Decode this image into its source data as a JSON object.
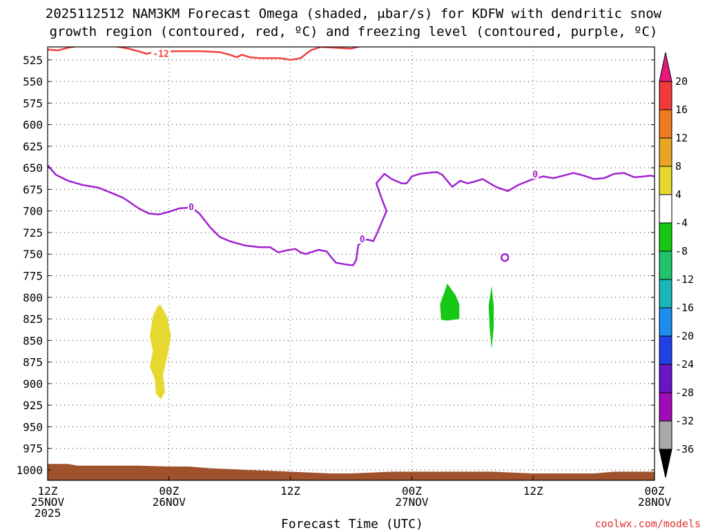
{
  "chart_data": {
    "type": "time-height cross section",
    "title_line1": "2025112512 NAM3KM Forecast Omega (shaded, μbar/s) for KDFW with dendritic snow",
    "title_line2": "growth region (contoured, red, ºC) and freezing level (contoured, purple, ºC)",
    "xlabel": "Forecast Time (UTC)",
    "credit": "coolwx.com/models",
    "xlim_hours": [
      0,
      60
    ],
    "ylim_hPa": [
      510,
      1012
    ],
    "y_ticks": [
      525,
      550,
      575,
      600,
      625,
      650,
      675,
      700,
      725,
      750,
      775,
      800,
      825,
      850,
      875,
      900,
      925,
      950,
      975,
      1000
    ],
    "x_ticks": [
      {
        "hour": 0,
        "line1": "12Z",
        "line2": "25NOV",
        "line3": "2025"
      },
      {
        "hour": 12,
        "line1": "00Z",
        "line2": "26NOV",
        "line3": ""
      },
      {
        "hour": 24,
        "line1": "12Z",
        "line2": "",
        "line3": ""
      },
      {
        "hour": 36,
        "line1": "00Z",
        "line2": "27NOV",
        "line3": ""
      },
      {
        "hour": 48,
        "line1": "12Z",
        "line2": "",
        "line3": ""
      },
      {
        "hour": 60,
        "line1": "00Z",
        "line2": "28NOV",
        "line3": ""
      }
    ],
    "colorbar": {
      "labels": [
        "20",
        "16",
        "12",
        "8",
        "4",
        "-4",
        "-8",
        "-12",
        "-16",
        "-20",
        "-24",
        "-28",
        "-32",
        "-36"
      ],
      "colors": [
        "#e8177c",
        "#f03a3a",
        "#f07a1e",
        "#e8a524",
        "#e6d82e",
        "#ffffff",
        "#14c814",
        "#1fc46c",
        "#19b8b8",
        "#1d8ef0",
        "#2040e8",
        "#6a14c8",
        "#a00ab8",
        "#a8a8a8",
        "#000000"
      ]
    },
    "freezing_level_contour": {
      "label": "0",
      "color": "#a020d0",
      "points": [
        [
          0,
          647
        ],
        [
          0.8,
          658
        ],
        [
          2,
          665
        ],
        [
          3.5,
          670
        ],
        [
          5,
          673
        ],
        [
          6.5,
          680
        ],
        [
          7.5,
          685
        ],
        [
          9,
          697
        ],
        [
          10,
          703
        ],
        [
          11,
          704
        ],
        [
          12,
          701
        ],
        [
          13,
          697
        ],
        [
          14.2,
          696
        ],
        [
          15,
          703
        ],
        [
          16,
          718
        ],
        [
          17,
          730
        ],
        [
          18,
          735
        ],
        [
          19.5,
          740
        ],
        [
          21,
          742
        ],
        [
          22,
          742
        ],
        [
          22.8,
          748
        ],
        [
          23.5,
          746
        ],
        [
          24.5,
          744
        ],
        [
          25,
          748
        ],
        [
          25.5,
          750
        ],
        [
          26,
          748
        ],
        [
          26.8,
          745
        ],
        [
          27.6,
          747
        ],
        [
          28,
          753
        ],
        [
          28.5,
          760
        ],
        [
          29.5,
          762
        ],
        [
          30.2,
          763
        ],
        [
          30.5,
          757
        ],
        [
          30.7,
          740
        ],
        [
          31.1,
          735
        ],
        [
          31.6,
          733
        ],
        [
          32.2,
          735
        ],
        [
          32.6,
          725
        ],
        [
          33.5,
          700
        ],
        [
          33,
          685
        ],
        [
          32.5,
          668
        ],
        [
          33.3,
          657
        ],
        [
          34,
          663
        ],
        [
          35,
          668
        ],
        [
          35.5,
          668
        ],
        [
          36,
          660
        ],
        [
          36.8,
          657
        ],
        [
          37.5,
          656
        ],
        [
          38.5,
          655
        ],
        [
          39,
          658
        ],
        [
          40,
          672
        ],
        [
          40.8,
          665
        ],
        [
          41.5,
          668
        ],
        [
          42.2,
          666
        ],
        [
          43,
          663
        ],
        [
          44.3,
          672
        ],
        [
          45.5,
          677
        ],
        [
          46.5,
          670
        ],
        [
          48,
          663
        ],
        [
          49,
          660
        ],
        [
          50,
          662
        ],
        [
          51,
          659
        ],
        [
          52,
          656
        ],
        [
          53,
          659
        ],
        [
          54,
          663
        ],
        [
          55,
          662
        ],
        [
          56,
          657
        ],
        [
          57,
          656
        ],
        [
          58,
          661
        ],
        [
          59,
          660
        ],
        [
          59.6,
          659
        ],
        [
          60,
          660
        ]
      ],
      "label_positions": [
        [
          14.2,
          696
        ],
        [
          31.1,
          733
        ],
        [
          48.2,
          658
        ]
      ],
      "small_loop_center": [
        45.2,
        754
      ]
    },
    "dgz_contour": {
      "label": "-12",
      "color": "#f04040",
      "points": [
        [
          0,
          513
        ],
        [
          1,
          514
        ],
        [
          2,
          511
        ],
        [
          3,
          509
        ],
        [
          6,
          508
        ],
        [
          8,
          512
        ],
        [
          9,
          515
        ],
        [
          9.8,
          518
        ],
        [
          10.5,
          516
        ],
        [
          12,
          515
        ],
        [
          15,
          515
        ],
        [
          17,
          516
        ],
        [
          18,
          519
        ],
        [
          18.7,
          522
        ],
        [
          19.2,
          519
        ],
        [
          20,
          522
        ],
        [
          21,
          523
        ],
        [
          22,
          523
        ],
        [
          23,
          523
        ],
        [
          24,
          525
        ],
        [
          25,
          523
        ],
        [
          26,
          514
        ],
        [
          27,
          510
        ],
        [
          28.5,
          511
        ],
        [
          30,
          512
        ],
        [
          31,
          509
        ],
        [
          32,
          508
        ]
      ],
      "label_position": [
        11.2,
        519
      ]
    },
    "omega_regions": [
      {
        "name": "positive 4 to 8",
        "color": "#e6d82e",
        "points": [
          [
            11.1,
            808
          ],
          [
            11.8,
            822
          ],
          [
            12.2,
            845
          ],
          [
            11.8,
            870
          ],
          [
            11.4,
            890
          ],
          [
            11.6,
            910
          ],
          [
            11.2,
            918
          ],
          [
            10.7,
            912
          ],
          [
            10.6,
            895
          ],
          [
            10.1,
            880
          ],
          [
            10.4,
            862
          ],
          [
            10.1,
            845
          ],
          [
            10.4,
            822
          ],
          [
            10.8,
            812
          ]
        ]
      },
      {
        "name": "negative -4 to -8 a",
        "color": "#14c814",
        "points": [
          [
            39.5,
            784
          ],
          [
            40.3,
            797
          ],
          [
            40.7,
            808
          ],
          [
            40.7,
            825
          ],
          [
            39.5,
            827
          ],
          [
            38.9,
            826
          ],
          [
            38.8,
            808
          ],
          [
            39.2,
            795
          ]
        ]
      },
      {
        "name": "negative -4 to -8 b",
        "color": "#14c814",
        "points": [
          [
            43.9,
            787
          ],
          [
            44.1,
            810
          ],
          [
            44.1,
            835
          ],
          [
            43.9,
            860
          ],
          [
            43.7,
            835
          ],
          [
            43.6,
            810
          ]
        ]
      }
    ],
    "ground": {
      "color": "#a0522d",
      "points": [
        [
          0,
          993
        ],
        [
          2,
          993
        ],
        [
          3,
          995
        ],
        [
          9,
          995
        ],
        [
          12,
          996
        ],
        [
          14,
          996
        ],
        [
          16,
          998
        ],
        [
          20,
          1000
        ],
        [
          24,
          1002
        ],
        [
          28,
          1004
        ],
        [
          30,
          1004
        ],
        [
          34,
          1002
        ],
        [
          36,
          1002
        ],
        [
          40,
          1002
        ],
        [
          44,
          1002
        ],
        [
          48,
          1004
        ],
        [
          50,
          1004
        ],
        [
          54,
          1004
        ],
        [
          56,
          1002
        ],
        [
          60,
          1002
        ]
      ]
    }
  }
}
